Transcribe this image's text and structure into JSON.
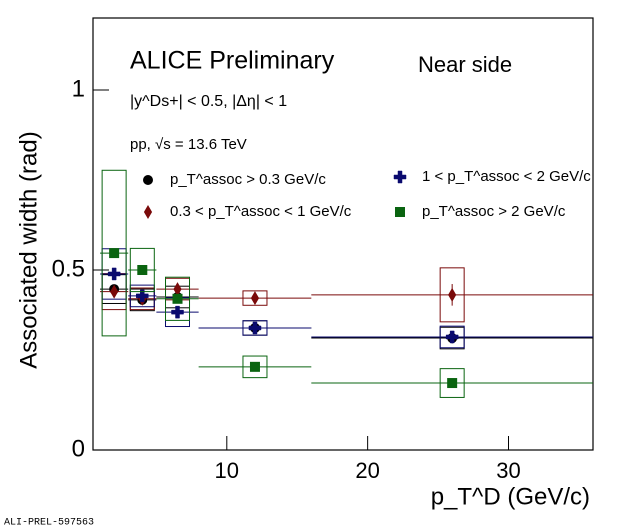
{
  "chart_data": {
    "type": "errorbar",
    "title": "ALICE Preliminary",
    "annotations": [
      "Near side",
      "|y^Ds+| < 0.5, |Δη| < 1",
      "pp,  √s = 13.6 TeV"
    ],
    "x_label": "p_T^D (GeV/c)",
    "y_label": "Associated width (rad)",
    "footer": "ALI-PREL-597563",
    "xlim": [
      0.5,
      36
    ],
    "ylim": [
      0,
      1.2
    ],
    "xticks": [
      10,
      20,
      30
    ],
    "yticks": [
      0,
      0.5,
      1
    ],
    "x": [
      2,
      4,
      6.5,
      12,
      26
    ],
    "xerr": [
      1,
      1,
      1.5,
      4,
      10
    ],
    "series": [
      {
        "name": "p_T^assoc > 0.3 GeV/c",
        "color": "#000000",
        "marker": "circle",
        "values": [
          0.447,
          0.417,
          0.425,
          0.339,
          0.311
        ],
        "stat": [
          0.01,
          0.01,
          0.01,
          0.01,
          0.015
        ],
        "sys": [
          0.04,
          0.03,
          0.03,
          0.02,
          0.03
        ]
      },
      {
        "name": "0.3 <  p_T^assoc < 1 GeV/c",
        "color": "#7a0a0a",
        "marker": "diamond",
        "values": [
          0.44,
          0.42,
          0.447,
          0.422,
          0.431
        ],
        "stat": [
          0.01,
          0.01,
          0.015,
          0.015,
          0.03
        ],
        "sys": [
          0.05,
          0.03,
          0.03,
          0.02,
          0.075
        ]
      },
      {
        "name": "1 <  p_T^assoc < 2 GeV/c",
        "color": "#0a0a6e",
        "marker": "cross",
        "values": [
          0.489,
          0.428,
          0.383,
          0.339,
          0.314
        ],
        "stat": [
          0.01,
          0.01,
          0.01,
          0.01,
          0.015
        ],
        "sys": [
          0.07,
          0.03,
          0.04,
          0.02,
          0.03
        ]
      },
      {
        "name": "p_T^assoc > 2 GeV/c",
        "color": "#0a6410",
        "marker": "square",
        "values": [
          0.547,
          0.5,
          0.42,
          0.231,
          0.186
        ],
        "stat": [
          0.01,
          0.01,
          0.01,
          0.01,
          0.01
        ],
        "sys": [
          0.23,
          0.06,
          0.06,
          0.03,
          0.04
        ]
      }
    ]
  }
}
